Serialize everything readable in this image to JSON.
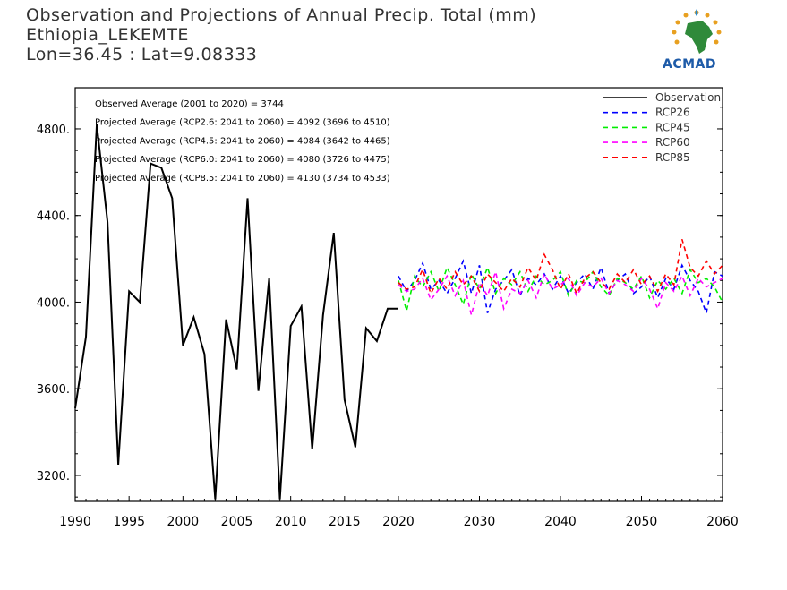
{
  "header": {
    "title": "Observation and Projections of Annual Precip. Total (mm)",
    "location": "Ethiopia_LEKEMTE",
    "coords": "Lon=36.45 : Lat=9.08333"
  },
  "logo": {
    "text": "ACMAD",
    "icon": "africa-map-logo-icon"
  },
  "chart_data": {
    "type": "line",
    "title": "Observation and Projections of Annual Precip. Total (mm)",
    "ylim": [
      3080,
      4990
    ],
    "xlim": [
      1990,
      2060
    ],
    "y_ticks": [
      3200,
      3600,
      4000,
      4400,
      4800
    ],
    "y_tick_labels": [
      "3200.",
      "3600.",
      "4000.",
      "4400.",
      "4800."
    ],
    "x_ticks": [
      1990,
      1995,
      2000,
      2005,
      2010,
      2015,
      2020,
      2030,
      2040,
      2050,
      2060
    ],
    "x_tick_labels": [
      "1990",
      "1995",
      "2000",
      "2005",
      "2010",
      "2015",
      "2020",
      "2030",
      "2040",
      "2050",
      "2060"
    ],
    "annotations": [
      "Observed Average (2001 to 2020) = 3744",
      "Projected Average (RCP2.6: 2041 to 2060) = 4092 (3696 to 4510)",
      "Projected Average (RCP4.5: 2041 to 2060) = 4084 (3642 to 4465)",
      "Projected Average (RCP6.0: 2041 to 2060) = 4080 (3726 to 4475)",
      "Projected Average (RCP8.5: 2041 to 2060) = 4130 (3734 to 4533)"
    ],
    "legend_position": "top-right",
    "series": [
      {
        "name": "Observation",
        "color": "#000000",
        "dash": "solid",
        "x": [
          1990,
          1991,
          1992,
          1993,
          1994,
          1995,
          1996,
          1997,
          1998,
          1999,
          2000,
          2001,
          2002,
          2003,
          2004,
          2005,
          2006,
          2007,
          2008,
          2009,
          2010,
          2011,
          2012,
          2013,
          2014,
          2015,
          2016,
          2017,
          2018,
          2019,
          2020
        ],
        "values": [
          3510,
          3840,
          4820,
          4370,
          3250,
          4050,
          4000,
          4640,
          4620,
          4480,
          3800,
          3930,
          3760,
          3090,
          3920,
          3690,
          4480,
          3590,
          4110,
          3090,
          3890,
          3980,
          3320,
          3940,
          4320,
          3550,
          3330,
          3880,
          3820,
          3970,
          3970
        ]
      },
      {
        "name": "RCP26",
        "color": "#0000ff",
        "dash": "dashed",
        "x": [
          2020,
          2021,
          2022,
          2023,
          2024,
          2025,
          2026,
          2027,
          2028,
          2029,
          2030,
          2031,
          2032,
          2033,
          2034,
          2035,
          2036,
          2037,
          2038,
          2039,
          2040,
          2041,
          2042,
          2043,
          2044,
          2045,
          2046,
          2047,
          2048,
          2049,
          2050,
          2051,
          2052,
          2053,
          2054,
          2055,
          2056,
          2057,
          2058,
          2059,
          2060
        ],
        "values": [
          4120,
          4050,
          4100,
          4180,
          4060,
          4100,
          4040,
          4110,
          4190,
          4040,
          4170,
          3950,
          4060,
          4100,
          4150,
          4030,
          4110,
          4080,
          4130,
          4060,
          4120,
          4040,
          4090,
          4130,
          4060,
          4160,
          4040,
          4100,
          4130,
          4040,
          4070,
          4120,
          4020,
          4110,
          4060,
          4170,
          4100,
          4050,
          3950,
          4140,
          4120
        ]
      },
      {
        "name": "RCP45",
        "color": "#00ee00",
        "dash": "dashed",
        "x": [
          2020,
          2021,
          2022,
          2023,
          2024,
          2025,
          2026,
          2027,
          2028,
          2029,
          2030,
          2031,
          2032,
          2033,
          2034,
          2035,
          2036,
          2037,
          2038,
          2039,
          2040,
          2041,
          2042,
          2043,
          2044,
          2045,
          2046,
          2047,
          2048,
          2049,
          2050,
          2051,
          2052,
          2053,
          2054,
          2055,
          2056,
          2057,
          2058,
          2059,
          2060
        ],
        "values": [
          4100,
          3960,
          4120,
          4070,
          4140,
          4050,
          4160,
          4080,
          3990,
          4130,
          4060,
          4160,
          4040,
          4110,
          4080,
          4140,
          4050,
          4120,
          4080,
          4100,
          4140,
          4030,
          4100,
          4090,
          4140,
          4070,
          4030,
          4110,
          4090,
          4060,
          4120,
          4020,
          4100,
          4060,
          4110,
          4040,
          4150,
          4090,
          4110,
          4070,
          4000
        ]
      },
      {
        "name": "RCP60",
        "color": "#ff00ff",
        "dash": "dashed",
        "x": [
          2020,
          2021,
          2022,
          2023,
          2024,
          2025,
          2026,
          2027,
          2028,
          2029,
          2030,
          2031,
          2032,
          2033,
          2034,
          2035,
          2036,
          2037,
          2038,
          2039,
          2040,
          2041,
          2042,
          2043,
          2044,
          2045,
          2046,
          2047,
          2048,
          2049,
          2050,
          2051,
          2052,
          2053,
          2054,
          2055,
          2056,
          2057,
          2058,
          2059,
          2060
        ],
        "values": [
          4080,
          4050,
          4060,
          4110,
          4010,
          4060,
          4120,
          4030,
          4100,
          3940,
          4090,
          4030,
          4140,
          3970,
          4060,
          4040,
          4100,
          4020,
          4130,
          4060,
          4080,
          4110,
          4030,
          4090,
          4070,
          4110,
          4040,
          4100,
          4080,
          4050,
          4110,
          4060,
          3970,
          4090,
          4050,
          4120,
          4030,
          4110,
          4070,
          4090,
          4110
        ]
      },
      {
        "name": "RCP85",
        "color": "#ff0000",
        "dash": "dashed",
        "x": [
          2020,
          2021,
          2022,
          2023,
          2024,
          2025,
          2026,
          2027,
          2028,
          2029,
          2030,
          2031,
          2032,
          2033,
          2034,
          2035,
          2036,
          2037,
          2038,
          2039,
          2040,
          2041,
          2042,
          2043,
          2044,
          2045,
          2046,
          2047,
          2048,
          2049,
          2050,
          2051,
          2052,
          2053,
          2054,
          2055,
          2056,
          2057,
          2058,
          2059,
          2060
        ],
        "values": [
          4090,
          4060,
          4070,
          4150,
          4040,
          4110,
          4060,
          4140,
          4080,
          4120,
          4050,
          4130,
          4090,
          4050,
          4110,
          4070,
          4160,
          4100,
          4220,
          4150,
          4060,
          4130,
          4040,
          4110,
          4140,
          4090,
          4060,
          4130,
          4090,
          4150,
          4080,
          4120,
          4050,
          4130,
          4080,
          4290,
          4160,
          4120,
          4190,
          4130,
          4170
        ]
      }
    ]
  }
}
